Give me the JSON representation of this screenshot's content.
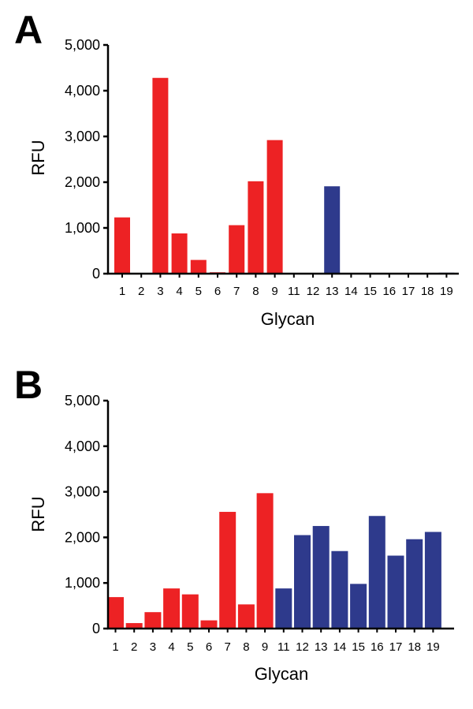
{
  "chart_data": [
    {
      "type": "bar",
      "panel_label": "A",
      "categories": [
        "1",
        "2",
        "3",
        "4",
        "5",
        "6",
        "7",
        "8",
        "9",
        "11",
        "12",
        "13",
        "14",
        "15",
        "16",
        "17",
        "18",
        "19"
      ],
      "values": [
        1230,
        0,
        4280,
        880,
        300,
        30,
        1060,
        2020,
        2920,
        0,
        0,
        1910,
        0,
        0,
        0,
        0,
        0,
        20
      ],
      "bar_colors": [
        "#ed2224",
        "#ed2224",
        "#ed2224",
        "#ed2224",
        "#ed2224",
        "#ed2224",
        "#ed2224",
        "#ed2224",
        "#ed2224",
        "#2e3a8c",
        "#2e3a8c",
        "#2e3a8c",
        "#2e3a8c",
        "#2e3a8c",
        "#2e3a8c",
        "#2e3a8c",
        "#2e3a8c",
        "#2e3a8c"
      ],
      "xlabel": "Glycan",
      "ylabel": "RFU",
      "ylim": [
        0,
        5000
      ],
      "yticks": [
        0,
        1000,
        2000,
        3000,
        4000,
        5000
      ],
      "ytick_labels": [
        "0",
        "1,000",
        "2,000",
        "3,000",
        "4,000",
        "5,000"
      ]
    },
    {
      "type": "bar",
      "panel_label": "B",
      "categories": [
        "1",
        "2",
        "3",
        "4",
        "5",
        "6",
        "7",
        "8",
        "9",
        "11",
        "12",
        "13",
        "14",
        "15",
        "16",
        "17",
        "18",
        "19"
      ],
      "values": [
        690,
        120,
        360,
        880,
        750,
        180,
        2560,
        530,
        2970,
        880,
        2050,
        2250,
        1700,
        980,
        2470,
        1600,
        1960,
        2120
      ],
      "bar_colors": [
        "#ed2224",
        "#ed2224",
        "#ed2224",
        "#ed2224",
        "#ed2224",
        "#ed2224",
        "#ed2224",
        "#ed2224",
        "#ed2224",
        "#2e3a8c",
        "#2e3a8c",
        "#2e3a8c",
        "#2e3a8c",
        "#2e3a8c",
        "#2e3a8c",
        "#2e3a8c",
        "#2e3a8c",
        "#2e3a8c"
      ],
      "xlabel": "Glycan",
      "ylabel": "RFU",
      "ylim": [
        0,
        5000
      ],
      "yticks": [
        0,
        1000,
        2000,
        3000,
        4000,
        5000
      ],
      "ytick_labels": [
        "0",
        "1,000",
        "2,000",
        "3,000",
        "4,000",
        "5,000"
      ]
    }
  ]
}
